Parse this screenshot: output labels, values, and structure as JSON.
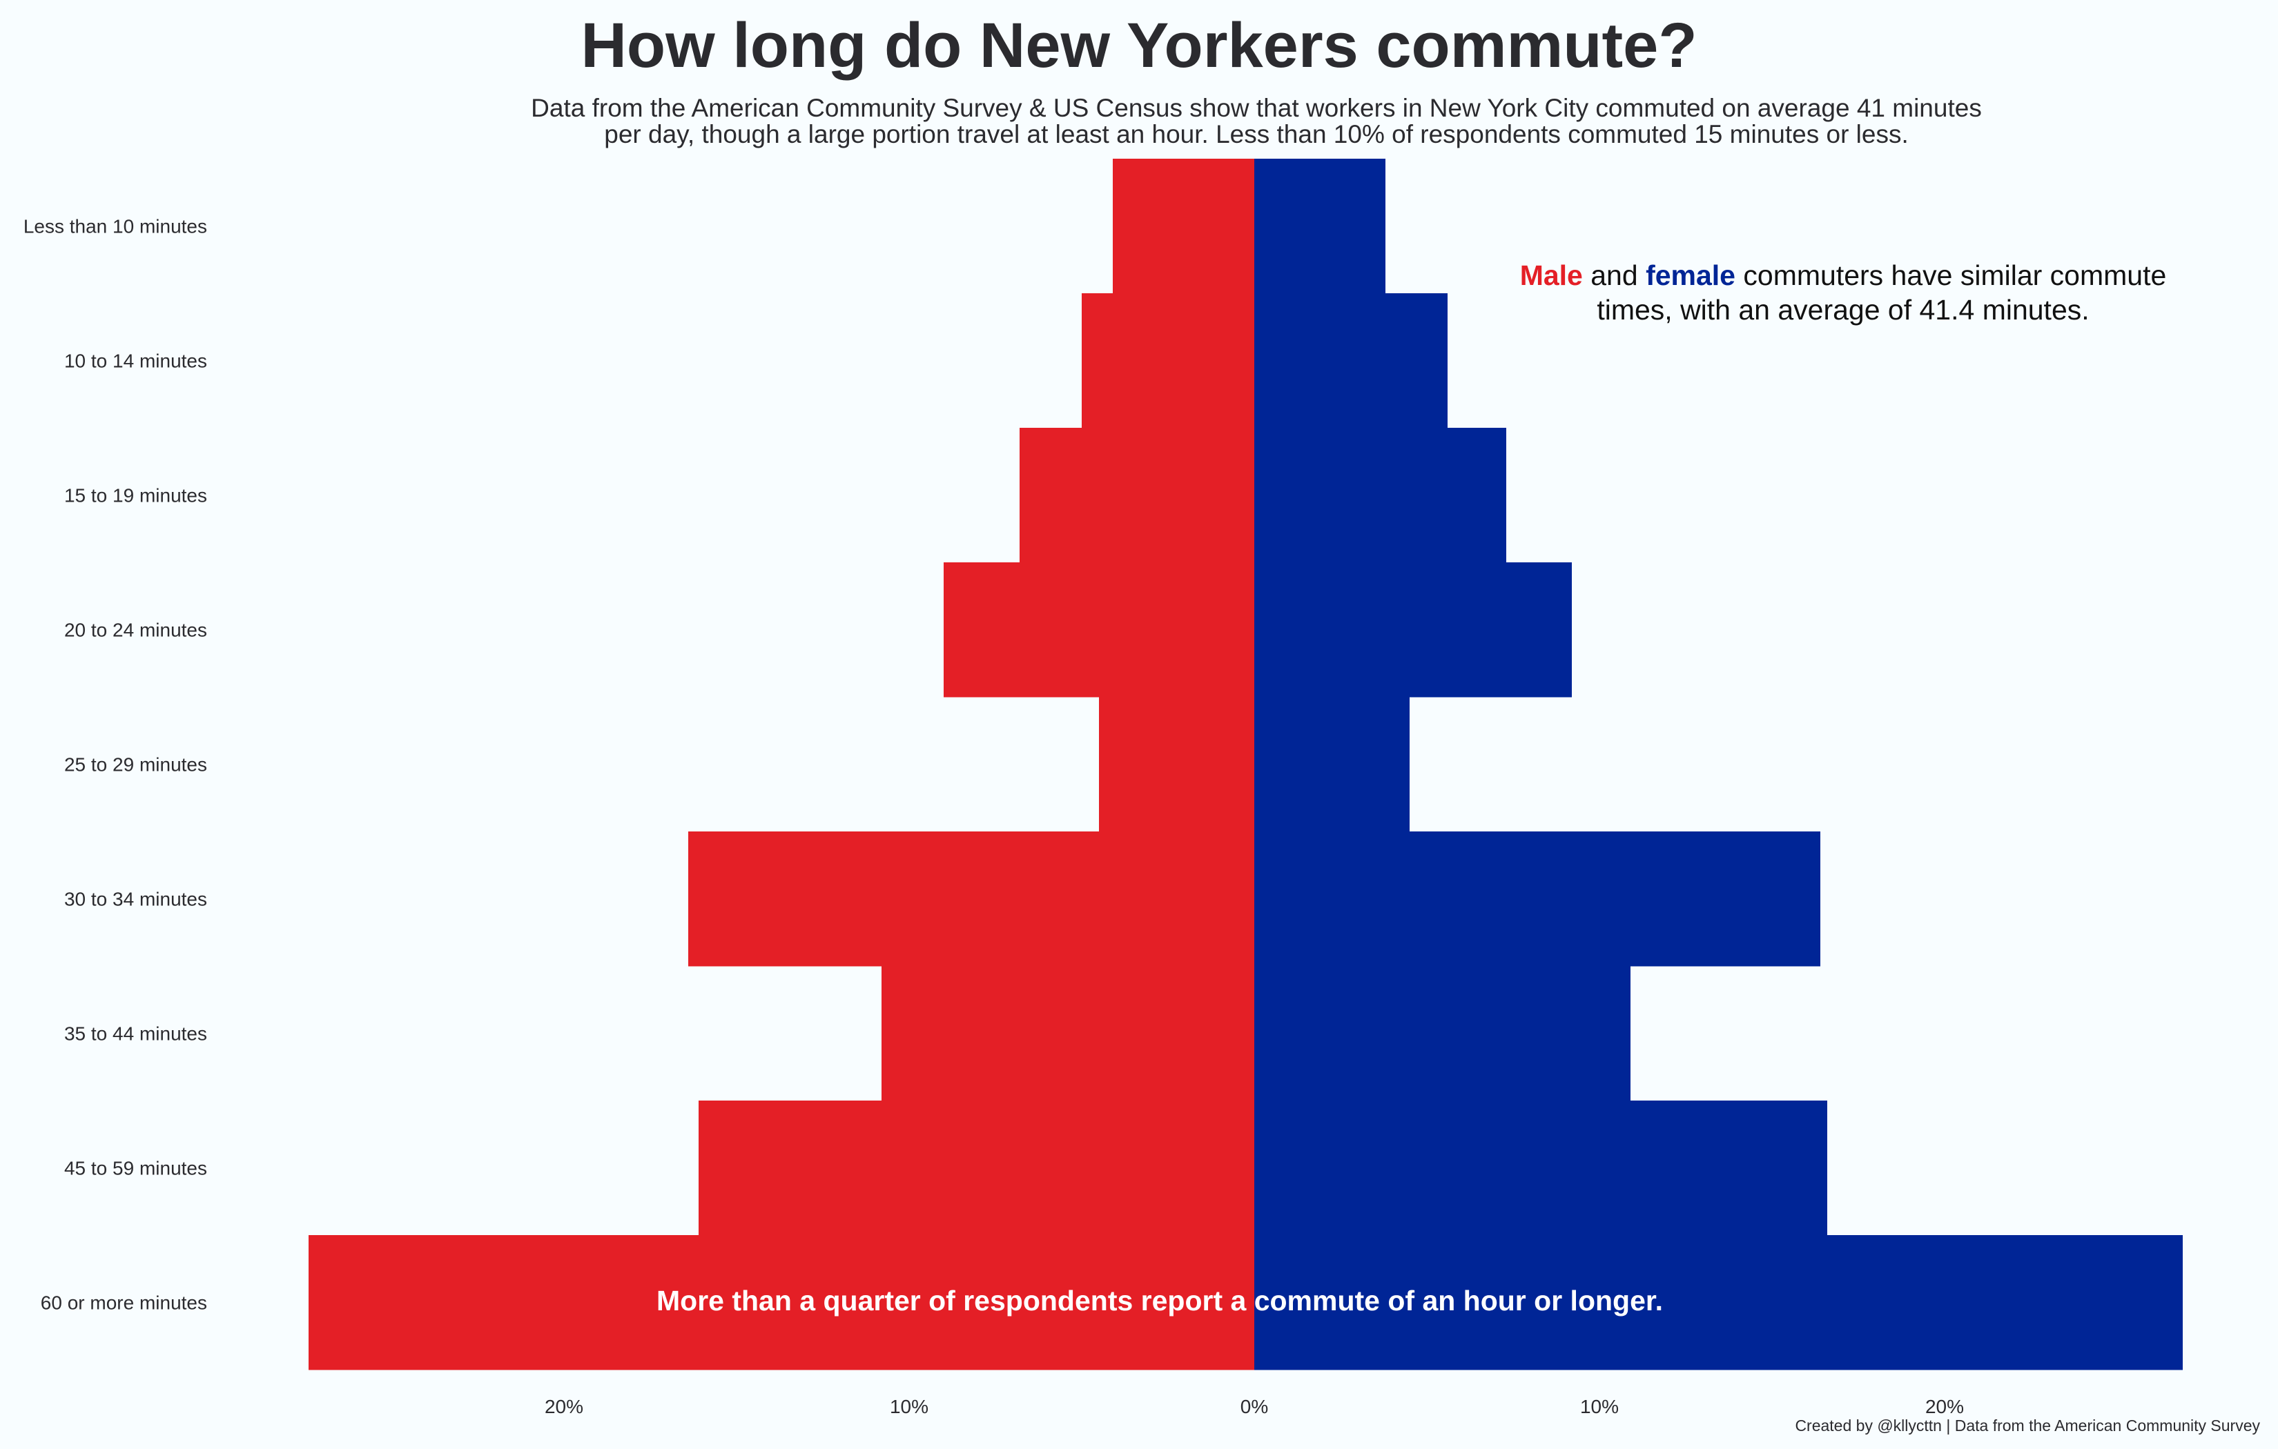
{
  "title": "How long do New Yorkers commute?",
  "subtitle_line1": "Data from the American Community Survey & US Census show that workers in New York City commuted on average 41 minutes",
  "subtitle_line2": "per day, though a large portion travel at least an hour. Less than 10% of respondents commuted 15 minutes or less.",
  "annotation_top": {
    "male_word": "Male",
    "and_word": "and",
    "female_word": "female",
    "rest_line1": "commuters have similar commute",
    "line2": "times, with an average of 41.4 minutes."
  },
  "annotation_bottom": "More than a quarter of respondents report a commute of an hour or longer.",
  "caption": "Created by @kllycttn | Data from the American Community Survey",
  "colors": {
    "male": "#e41f26",
    "female": "#002596",
    "background": "#f8fdff",
    "text": "#2b2b2f"
  },
  "chart_data": {
    "type": "bar",
    "orientation": "horizontal-diverging",
    "categories": [
      "Less than 10 minutes",
      "10 to 14 minutes",
      "15 to 19 minutes",
      "20 to 24 minutes",
      "25 to 29 minutes",
      "30 to 34 minutes",
      "35 to 44 minutes",
      "45 to 59 minutes",
      "60 or more minutes"
    ],
    "series": [
      {
        "name": "Male",
        "side": "left",
        "color": "#e41f26",
        "values": [
          4.1,
          5.0,
          6.8,
          9.0,
          4.5,
          16.4,
          10.8,
          16.1,
          27.4
        ]
      },
      {
        "name": "Female",
        "side": "right",
        "color": "#002596",
        "values": [
          3.8,
          5.6,
          7.3,
          9.2,
          4.5,
          16.4,
          10.9,
          16.6,
          26.9
        ]
      }
    ],
    "x_ticks": [
      {
        "value": -20,
        "label": "20%"
      },
      {
        "value": -10,
        "label": "10%"
      },
      {
        "value": 0,
        "label": "0%"
      },
      {
        "value": 10,
        "label": "10%"
      },
      {
        "value": 20,
        "label": "20%"
      }
    ],
    "xlim": [
      -27.4,
      26.9
    ],
    "grid": false,
    "legend": "none"
  }
}
